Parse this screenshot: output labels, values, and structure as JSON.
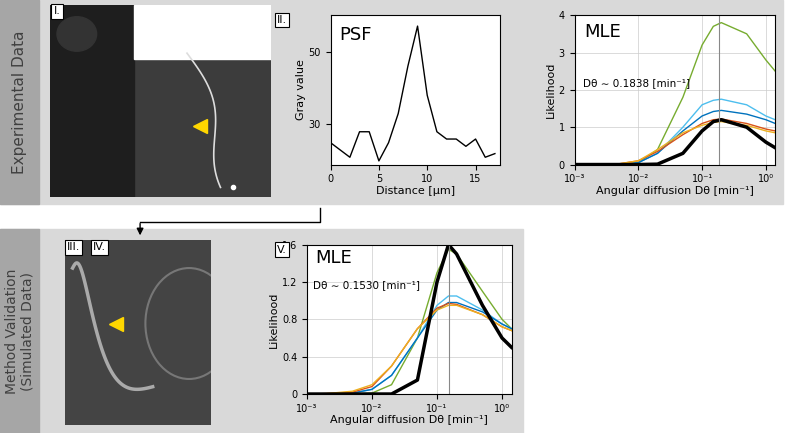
{
  "bands": [
    "Experimental Data",
    "Method Validation\n(Simulated Data)"
  ],
  "panel_labels": [
    "I.",
    "II.",
    "III.",
    "IV.",
    "V."
  ],
  "chart_data": [
    {
      "type": "line",
      "annotations": [
        "PSF"
      ],
      "x_label": "Distance [µm]",
      "y_label": "Gray value",
      "x": [
        0,
        1,
        2,
        3,
        4,
        5,
        6,
        7,
        8,
        9,
        10,
        11,
        12,
        13,
        14,
        15,
        16,
        17
      ],
      "series": [
        {
          "color": "#000000",
          "values": [
            25,
            23,
            21,
            28,
            28,
            20,
            25,
            33,
            46,
            57,
            38,
            28,
            26,
            26,
            24,
            26,
            21,
            22
          ]
        }
      ],
      "xlim": [
        0,
        17.5
      ],
      "ylim": [
        19,
        60
      ],
      "xticks": [
        0,
        5,
        10,
        15
      ],
      "yticks": [
        30,
        50
      ]
    },
    {
      "type": "line",
      "annotations": [
        "MLE",
        "Dθ ∼ 0.1838 [min⁻¹]"
      ],
      "estimate": 0.1838,
      "x_label": "Angular diffusion Dθ [min⁻¹]",
      "y_label": "Likelihood",
      "log": "x",
      "grid": true,
      "x": [
        0.001,
        0.002,
        0.005,
        0.01,
        0.02,
        0.05,
        0.1,
        0.15,
        0.2,
        0.5,
        1,
        1.4
      ],
      "series": [
        {
          "color": "#77ac30",
          "values": [
            0,
            0,
            0.01,
            0.05,
            0.4,
            1.8,
            3.2,
            3.7,
            3.8,
            3.5,
            2.8,
            2.5
          ]
        },
        {
          "color": "#4dbeee",
          "values": [
            0,
            0,
            0.01,
            0.05,
            0.3,
            1.0,
            1.6,
            1.72,
            1.75,
            1.6,
            1.3,
            1.2
          ]
        },
        {
          "color": "#0072bd",
          "values": [
            0,
            0,
            0.01,
            0.05,
            0.3,
            0.9,
            1.3,
            1.42,
            1.45,
            1.35,
            1.2,
            1.1
          ]
        },
        {
          "color": "#d95319",
          "values": [
            0,
            0,
            0.02,
            0.1,
            0.35,
            0.8,
            1.1,
            1.2,
            1.22,
            1.1,
            0.95,
            0.9
          ]
        },
        {
          "color": "#edb120",
          "values": [
            0,
            0,
            0.02,
            0.1,
            0.4,
            0.85,
            1.05,
            1.13,
            1.15,
            1.05,
            0.9,
            0.85
          ]
        },
        {
          "color": "#000000",
          "values": [
            0,
            0,
            0,
            0,
            0.01,
            0.3,
            0.9,
            1.15,
            1.2,
            1.0,
            0.6,
            0.45
          ]
        }
      ],
      "xlim": [
        0.001,
        1.4
      ],
      "ylim": [
        0,
        4
      ],
      "xticks": [
        {
          "value": 0.001,
          "label": "10⁻³"
        },
        {
          "value": 0.01,
          "label": "10⁻²"
        },
        {
          "value": 0.1,
          "label": "10⁻¹"
        },
        {
          "value": 1,
          "label": "10⁰"
        }
      ],
      "yticks": [
        0,
        1,
        2,
        3,
        4
      ]
    },
    {
      "type": "line",
      "annotations": [
        "MLE",
        "Dθ ∼ 0.1530 [min⁻¹]"
      ],
      "estimate": 0.153,
      "x_label": "Angular diffusion Dθ [min⁻¹]",
      "y_label": "Likelihood",
      "log": "x",
      "grid": true,
      "x": [
        0.001,
        0.002,
        0.005,
        0.01,
        0.02,
        0.05,
        0.1,
        0.15,
        0.2,
        0.5,
        1,
        1.4
      ],
      "series": [
        {
          "color": "#77ac30",
          "values": [
            0,
            0,
            0,
            0.01,
            0.1,
            0.6,
            1.3,
            1.55,
            1.5,
            1.1,
            0.8,
            0.7
          ]
        },
        {
          "color": "#4dbeee",
          "values": [
            0,
            0,
            0.01,
            0.05,
            0.2,
            0.6,
            0.95,
            1.05,
            1.05,
            0.9,
            0.75,
            0.7
          ]
        },
        {
          "color": "#0072bd",
          "values": [
            0,
            0,
            0.01,
            0.05,
            0.2,
            0.6,
            0.9,
            0.98,
            0.98,
            0.88,
            0.75,
            0.7
          ]
        },
        {
          "color": "#d95319",
          "values": [
            0,
            0.005,
            0.02,
            0.08,
            0.3,
            0.7,
            0.92,
            0.97,
            0.96,
            0.85,
            0.72,
            0.68
          ]
        },
        {
          "color": "#edb120",
          "values": [
            0,
            0.005,
            0.03,
            0.1,
            0.3,
            0.7,
            0.9,
            0.95,
            0.95,
            0.85,
            0.72,
            0.68
          ]
        },
        {
          "color": "#000000",
          "values": [
            0,
            0,
            0,
            0,
            0,
            0.15,
            1.2,
            1.6,
            1.5,
            0.95,
            0.6,
            0.5
          ]
        }
      ],
      "xlim": [
        0.001,
        1.4
      ],
      "ylim": [
        0,
        1.6
      ],
      "xticks": [
        {
          "value": 0.001,
          "label": "10⁻³"
        },
        {
          "value": 0.01,
          "label": "10⁻²"
        },
        {
          "value": 0.1,
          "label": "10⁻¹"
        },
        {
          "value": 1,
          "label": "10⁰"
        }
      ],
      "yticks": [
        0,
        0.4,
        0.8,
        1.2,
        1.6
      ]
    }
  ]
}
